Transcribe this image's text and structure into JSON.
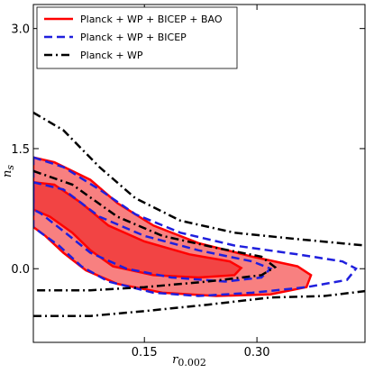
{
  "chart_data": {
    "type": "contour",
    "xlabel": "r",
    "xlabel_subscript": "0.002",
    "ylabel": "n",
    "ylabel_subscript": "s",
    "xlim": [
      0.002,
      0.444
    ],
    "ylim": [
      -0.92,
      3.3
    ],
    "xticks": [
      0.15,
      {
        "value": 0.3,
        "label": "0.30"
      }
    ],
    "yticks": [
      {
        "value": 0,
        "label": "0.0"
      },
      {
        "value": 1.5,
        "label": "1.5"
      },
      {
        "value": 3,
        "label": "3.0"
      }
    ],
    "legend": "upper left",
    "series": [
      {
        "name": "Planck + WP + BICEP + BAO",
        "color": "#ff0000",
        "linestyle": "solid",
        "fills": [
          "#f88080",
          "#f24444"
        ],
        "closed": true,
        "contours": [
          {
            "x": [
              0.002,
              0.03,
              0.078,
              0.114,
              0.162,
              0.222,
              0.294,
              0.354,
              0.372,
              0.366,
              0.318,
              0.246,
              0.174,
              0.114,
              0.072,
              0.042,
              0.018,
              0.002
            ],
            "y": [
              1.39,
              1.33,
              1.11,
              0.82,
              0.54,
              0.32,
              0.15,
              0.03,
              -0.08,
              -0.23,
              -0.32,
              -0.34,
              -0.3,
              -0.19,
              -0.02,
              0.2,
              0.41,
              0.52
            ]
          },
          {
            "x": [
              0.002,
              0.03,
              0.066,
              0.102,
              0.15,
              0.21,
              0.264,
              0.279,
              0.27,
              0.222,
              0.162,
              0.108,
              0.078,
              0.054,
              0.024,
              0.002
            ],
            "y": [
              1.08,
              1.05,
              0.82,
              0.54,
              0.34,
              0.18,
              0.09,
              0.01,
              -0.08,
              -0.11,
              -0.08,
              0.03,
              0.23,
              0.45,
              0.65,
              0.74
            ]
          }
        ]
      },
      {
        "name": "Planck + WP + BICEP",
        "color": "#1f1fdd",
        "linestyle": "dashed",
        "closed": true,
        "contours": [
          {
            "x": [
              0.002,
              0.042,
              0.09,
              0.138,
              0.198,
              0.27,
              0.354,
              0.414,
              0.432,
              0.42,
              0.366,
              0.294,
              0.222,
              0.162,
              0.102,
              0.066,
              0.036,
              0.012,
              0.002
            ],
            "y": [
              1.39,
              1.27,
              0.99,
              0.68,
              0.45,
              0.29,
              0.18,
              0.09,
              0,
              -0.14,
              -0.23,
              -0.3,
              -0.34,
              -0.3,
              -0.16,
              0.03,
              0.29,
              0.45,
              0.52
            ]
          },
          {
            "x": [
              0.002,
              0.042,
              0.09,
              0.15,
              0.222,
              0.294,
              0.318,
              0.306,
              0.258,
              0.186,
              0.126,
              0.078,
              0.042,
              0.012,
              0.002
            ],
            "y": [
              1.08,
              0.99,
              0.65,
              0.41,
              0.23,
              0.09,
              0,
              -0.11,
              -0.16,
              -0.11,
              0.0,
              0.2,
              0.47,
              0.69,
              0.74
            ]
          }
        ]
      },
      {
        "name": "Planck + WP",
        "color": "#000000",
        "linestyle": "dashdot",
        "closed": false,
        "contours": [
          {
            "x": [
              0.002,
              0.042,
              0.09,
              0.138,
              0.198,
              0.27,
              0.354,
              0.444
            ],
            "y": [
              1.95,
              1.73,
              1.27,
              0.88,
              0.6,
              0.45,
              0.37,
              0.29
            ]
          },
          {
            "x": [
              0.002,
              0.078,
              0.15,
              0.234,
              0.318,
              0.39,
              0.444
            ],
            "y": [
              -0.59,
              -0.59,
              -0.53,
              -0.45,
              -0.36,
              -0.34,
              -0.28
            ]
          },
          {
            "x": [
              0.002,
              0.054,
              0.114,
              0.174,
              0.246,
              0.306,
              0.324,
              0.306,
              0.234,
              0.15,
              0.078,
              0.002
            ],
            "y": [
              1.22,
              1.05,
              0.65,
              0.41,
              0.26,
              0.15,
              0.02,
              -0.08,
              -0.16,
              -0.23,
              -0.27,
              -0.27
            ]
          }
        ]
      }
    ]
  }
}
